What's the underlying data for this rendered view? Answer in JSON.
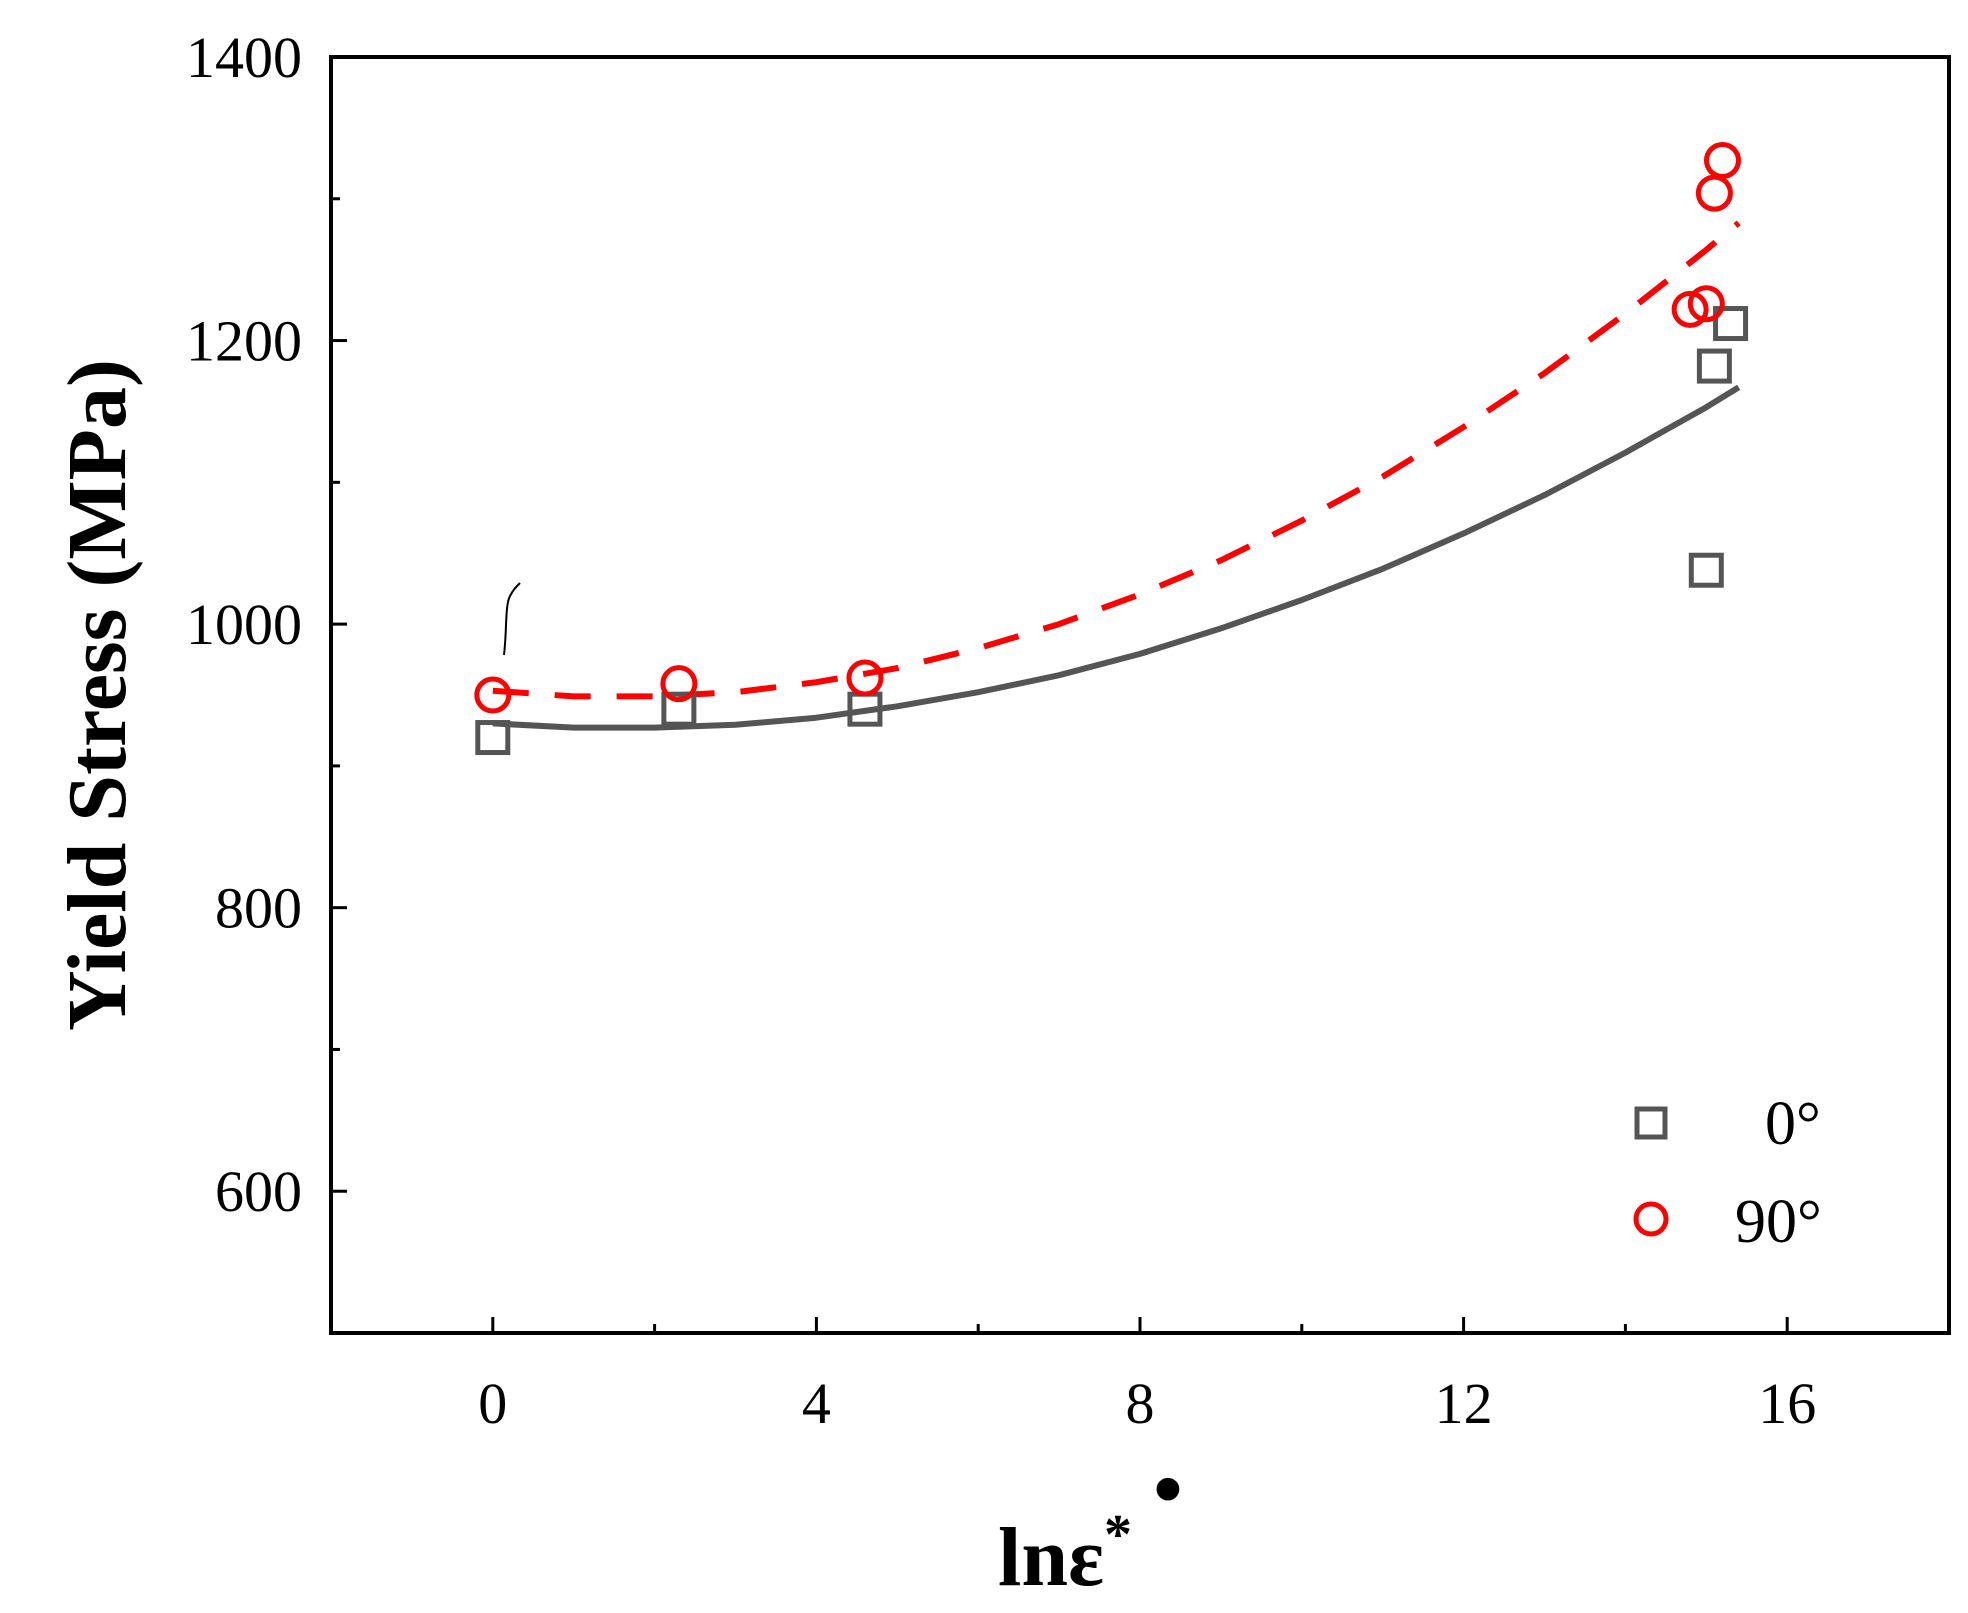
{
  "chart_data": {
    "type": "scatter",
    "title": "",
    "xlabel": "lnε̇*",
    "xlabel_parts": {
      "main": "lnε",
      "dot": "•",
      "sup": "*"
    },
    "ylabel": "Yield Stress (MPa)",
    "xlim": [
      -2,
      18
    ],
    "ylim": [
      500,
      1400
    ],
    "xticks": [
      0,
      4,
      8,
      12,
      16
    ],
    "xticks_minor": [
      2,
      6,
      10,
      14
    ],
    "yticks": [
      600,
      800,
      1000,
      1200,
      1400
    ],
    "yticks_minor": [
      700,
      900,
      1100,
      1300
    ],
    "grid": false,
    "legend_position": "bottom-right",
    "series": [
      {
        "name": "0°",
        "marker": "square",
        "color": "#555555",
        "x": [
          0,
          2.3,
          4.6,
          15.0,
          15.1,
          15.3
        ],
        "y": [
          920,
          940,
          940,
          1038,
          1182,
          1212
        ],
        "fit": {
          "style": "solid",
          "color": "#555555",
          "x": [
            0,
            1,
            2,
            3,
            4,
            5,
            6,
            7,
            8,
            9,
            10,
            11,
            12,
            13,
            14,
            15,
            15.4
          ],
          "y": [
            930,
            927,
            927,
            929,
            934,
            942,
            952,
            964,
            979,
            997,
            1017,
            1039,
            1064,
            1091,
            1121,
            1153,
            1167
          ]
        }
      },
      {
        "name": "90°",
        "marker": "circle",
        "color": "#ff0000",
        "x": [
          0,
          2.3,
          4.6,
          14.8,
          15.0,
          15.1,
          15.2
        ],
        "y": [
          950,
          958,
          962,
          1222,
          1226,
          1304,
          1327
        ],
        "fit": {
          "style": "dashed",
          "color": "#ff0000",
          "x": [
            0,
            1,
            2,
            3,
            4,
            5,
            6,
            7,
            8,
            9,
            10,
            11,
            12,
            13,
            14,
            15,
            15.4
          ],
          "y": [
            953,
            949,
            949,
            952,
            959,
            969,
            983,
            1000,
            1021,
            1045,
            1073,
            1104,
            1139,
            1177,
            1219,
            1264,
            1283
          ]
        }
      }
    ]
  }
}
